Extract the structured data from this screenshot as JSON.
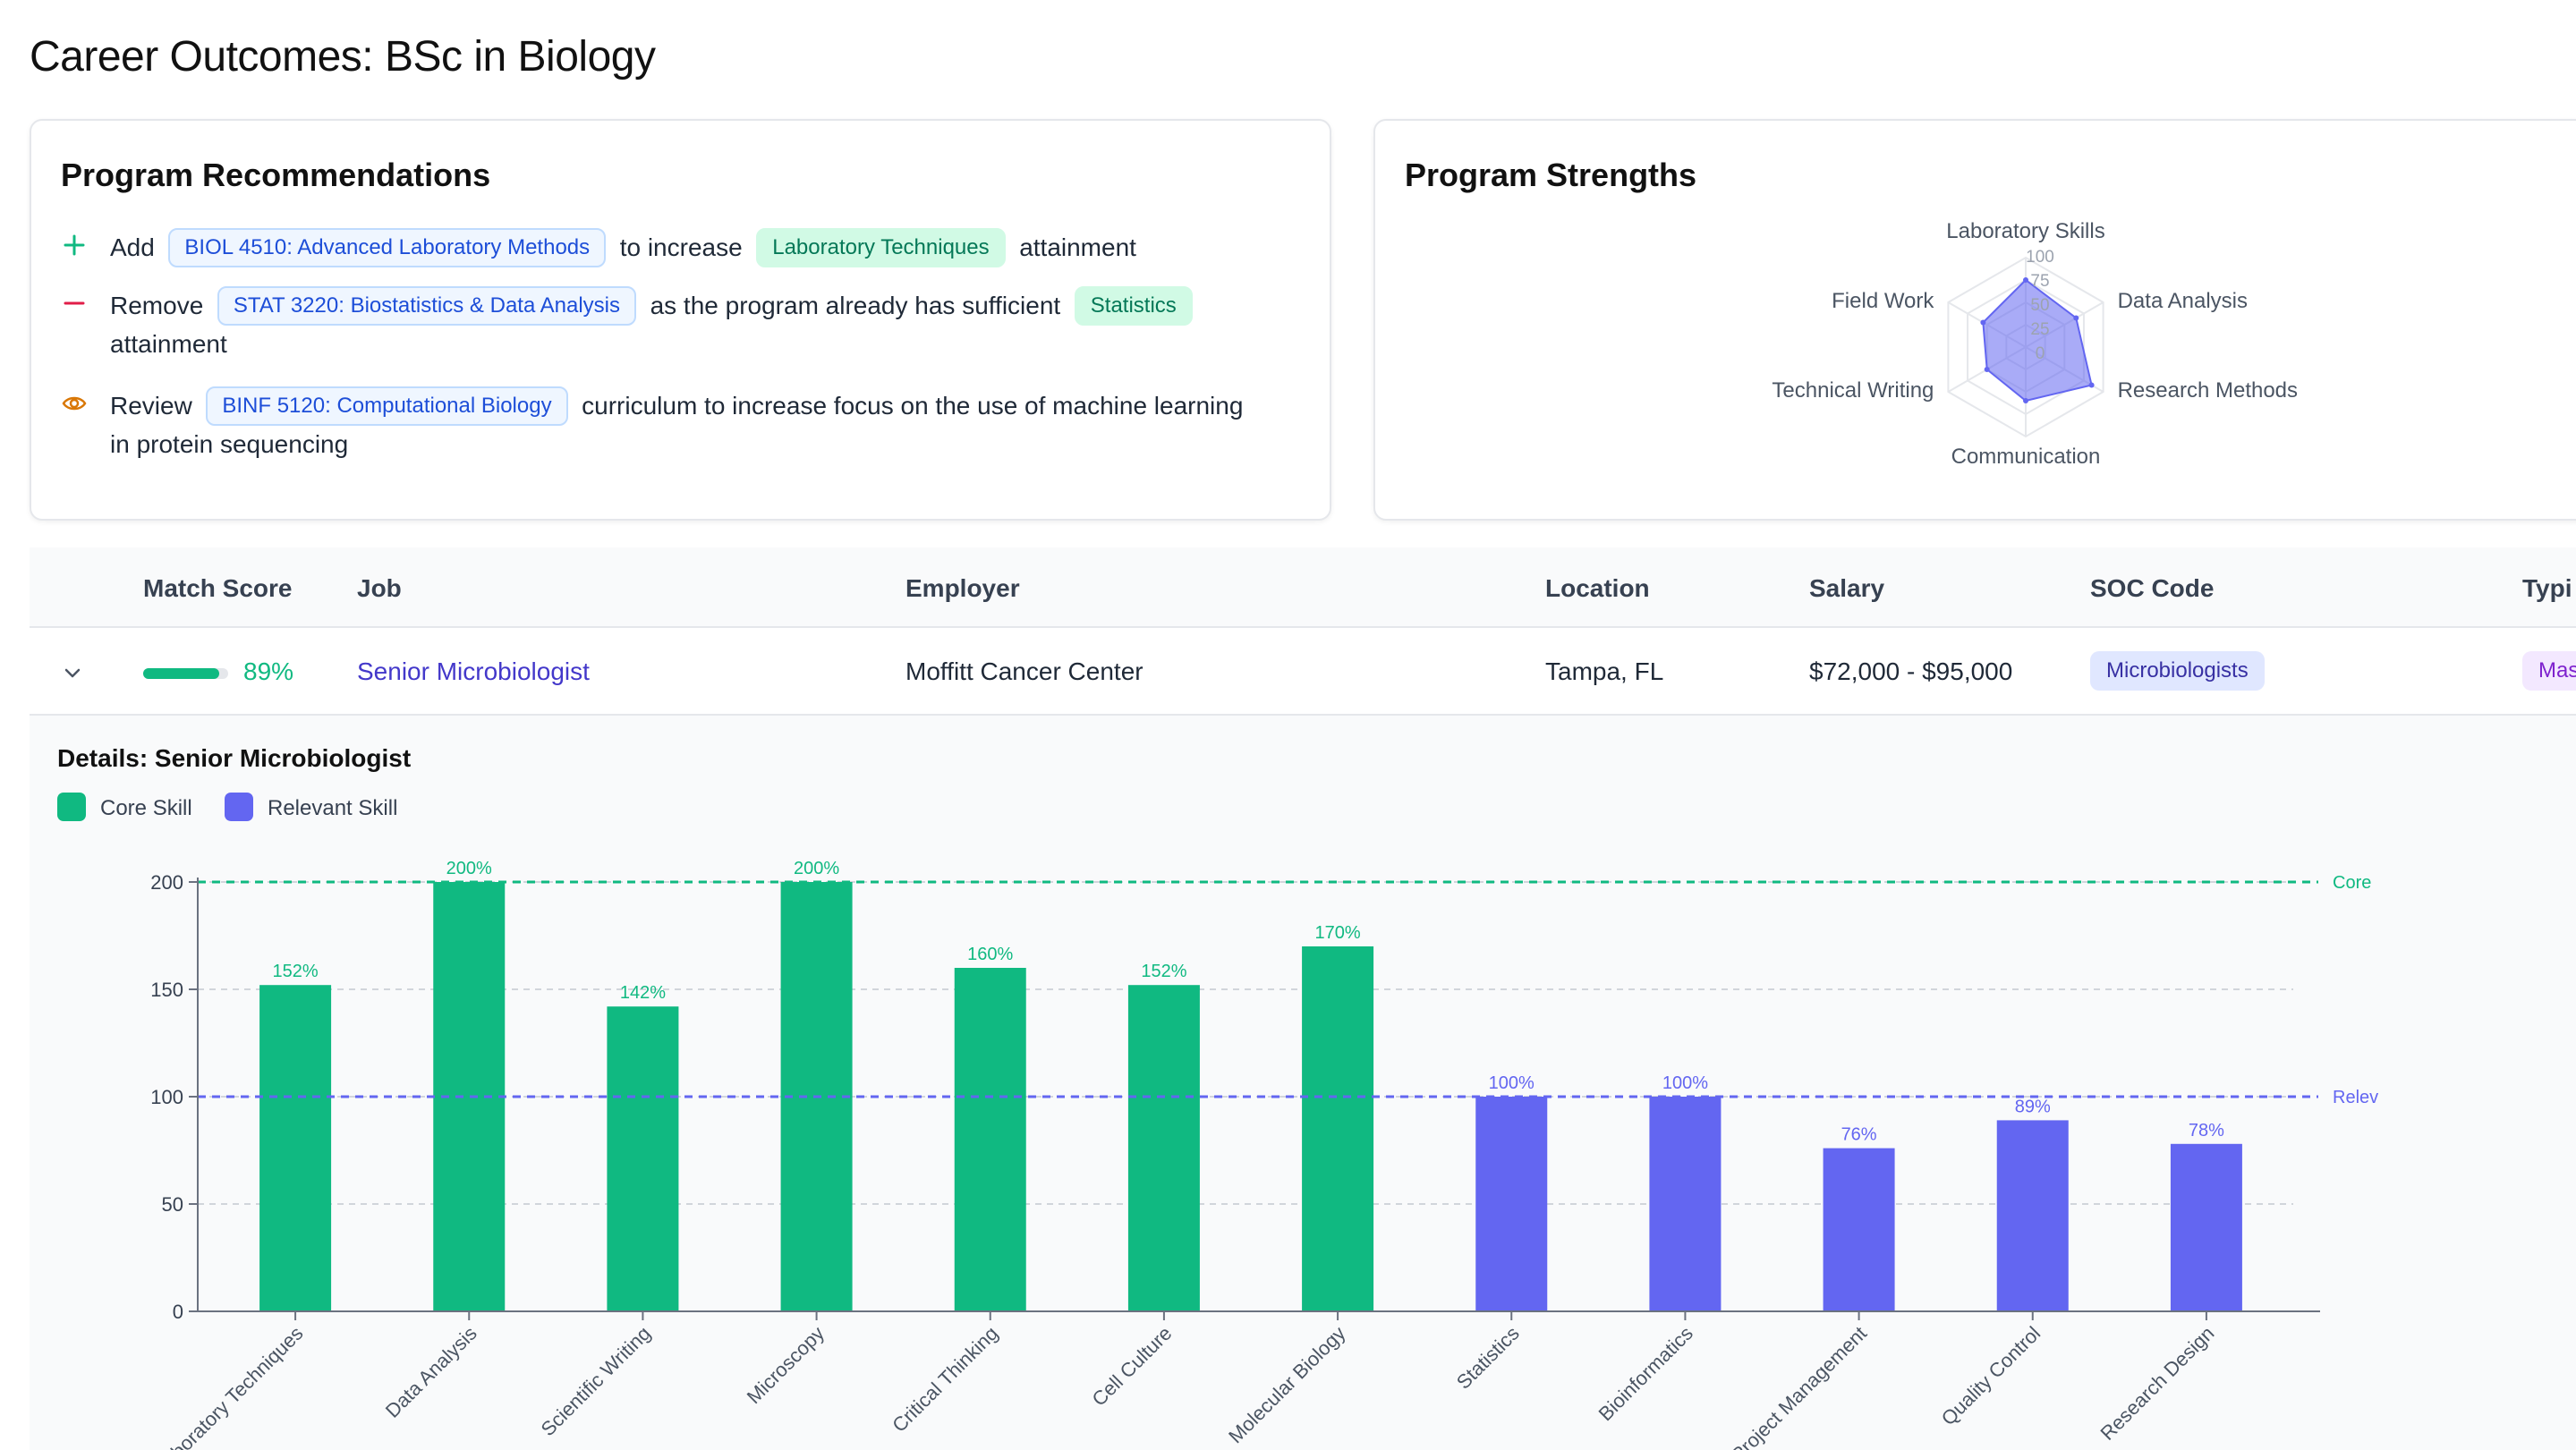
{
  "page": {
    "title": "Career Outcomes: BSc in Biology"
  },
  "recommendations": {
    "title": "Program Recommendations",
    "items": [
      {
        "action": "Add",
        "icon": "plus-icon",
        "color": "#10b981",
        "course": "BIOL 4510: Advanced Laboratory Methods",
        "middle": "to increase",
        "skill": "Laboratory Techniques",
        "end": "attainment"
      },
      {
        "action": "Remove",
        "icon": "minus-icon",
        "color": "#e11d48",
        "course": "STAT 3220: Biostatistics & Data Analysis",
        "middle": "as the program already has sufficient",
        "skill": "Statistics",
        "end": "attainment"
      },
      {
        "action": "Review",
        "icon": "eye-icon",
        "color": "#d97706",
        "course": "BINF 5120: Computational Biology",
        "middle": "curriculum to increase focus on the use of machine learning",
        "end": "in protein sequencing"
      }
    ]
  },
  "strengths": {
    "title": "Program Strengths",
    "axes": [
      "Laboratory Skills",
      "Data Analysis",
      "Research Methods",
      "Communication",
      "Technical Writing",
      "Field Work"
    ],
    "values": [
      75,
      65,
      85,
      60,
      50,
      55
    ],
    "ticks": [
      "100",
      "75",
      "50",
      "25",
      "0"
    ],
    "color": "#6366f1"
  },
  "table": {
    "headers": {
      "match": "Match Score",
      "job": "Job",
      "employer": "Employer",
      "location": "Location",
      "salary": "Salary",
      "soc": "SOC Code",
      "typical": "Typi"
    },
    "row": {
      "match": "89%",
      "match_value": 0.89,
      "job": "Senior Microbiologist",
      "employer": "Moffitt Cancer Center",
      "location": "Tampa, FL",
      "salary": "$72,000 - $95,000",
      "soc": "Microbiologists",
      "typical": "Mas"
    }
  },
  "details": {
    "title": "Details: Senior Microbiologist",
    "legend": {
      "core": "Core Skill",
      "relevant": "Relevant Skill"
    }
  },
  "chart_data": {
    "type": "bar",
    "categories": [
      "Laboratory Techniques",
      "Data Analysis",
      "Scientific Writing",
      "Microscopy",
      "Critical Thinking",
      "Cell Culture",
      "Molecular Biology",
      "Statistics",
      "Bioinformatics",
      "Project Management",
      "Quality Control",
      "Research Design"
    ],
    "values": [
      152,
      200,
      142,
      200,
      160,
      152,
      170,
      100,
      100,
      76,
      89,
      78
    ],
    "labels": [
      "152%",
      "200%",
      "142%",
      "200%",
      "160%",
      "152%",
      "170%",
      "100%",
      "100%",
      "76%",
      "89%",
      "78%"
    ],
    "kind": [
      "core",
      "core",
      "core",
      "core",
      "core",
      "core",
      "core",
      "relevant",
      "relevant",
      "relevant",
      "relevant",
      "relevant"
    ],
    "colors": {
      "core": "#10b981",
      "relevant": "#6366f1"
    },
    "ylim": [
      0,
      200
    ],
    "yticks": [
      0,
      50,
      100,
      150,
      200
    ],
    "reference_lines": [
      {
        "name": "Core",
        "value": 200,
        "color": "#10b981"
      },
      {
        "name": "Relev",
        "value": 100,
        "color": "#6366f1"
      }
    ],
    "grid": true
  }
}
